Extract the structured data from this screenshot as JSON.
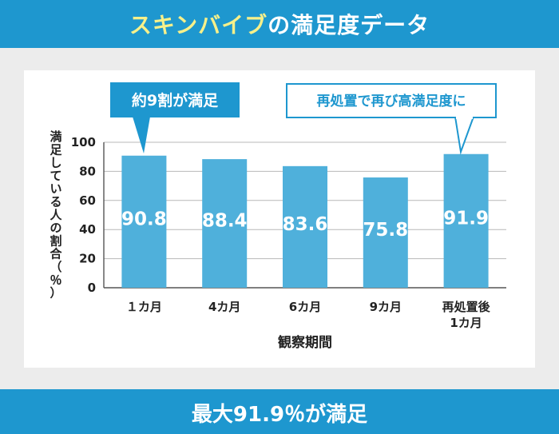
{
  "header": {
    "title_highlight": "スキンバイブ",
    "title_rest": "の満足度データ"
  },
  "callouts": {
    "left": "約9割が満足",
    "right": "再処置で再び高満足度に"
  },
  "footer": {
    "text": "最大91.9％が満足"
  },
  "colors": {
    "brand": "#1e97cf",
    "bar": "#4fb0db",
    "highlight": "#f6f08a"
  },
  "chart_data": {
    "type": "bar",
    "categories": [
      [
        "１カ月"
      ],
      [
        "4カ月"
      ],
      [
        "6カ月"
      ],
      [
        "9カ月"
      ],
      [
        "再処置後",
        "1カ月"
      ]
    ],
    "values": [
      90.8,
      88.4,
      83.6,
      75.8,
      91.9
    ],
    "value_labels": [
      "90.8",
      "88.4",
      "83.6",
      "75.8",
      "91.9"
    ],
    "yticks": [
      "0",
      "20",
      "40",
      "60",
      "80",
      "100"
    ],
    "xlabel": "観察期間",
    "ylabel": [
      "満",
      "足",
      "し",
      "て",
      "い",
      "る",
      "人",
      "の",
      "割",
      "合",
      "（",
      "％",
      "）"
    ],
    "ylim": [
      0,
      100
    ],
    "grid": true
  }
}
